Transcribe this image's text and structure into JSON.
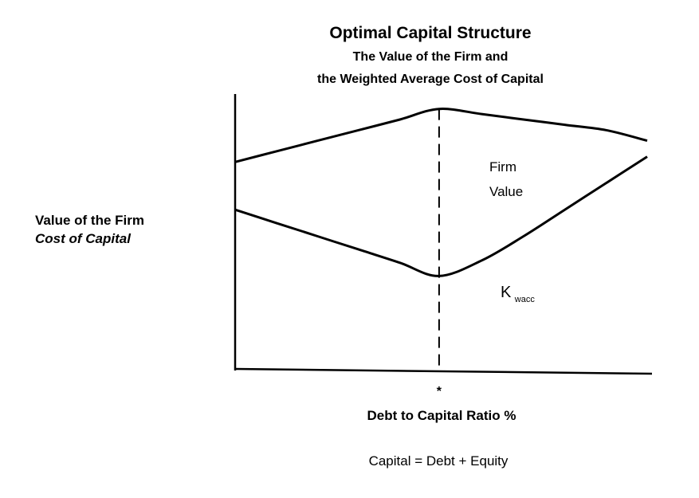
{
  "chart_data": {
    "type": "line",
    "title": "Optimal Capital Structure",
    "subtitle_line1": "The Value of the Firm and",
    "subtitle_line2": "the Weighted Average Cost of Capital",
    "xlabel": "Debt to Capital Ratio %",
    "ylabel_line1": "Value of the Firm",
    "ylabel_line2": "Cost of Capital",
    "optimal_marker": "*",
    "optimal_x": 0.495,
    "xlim": [
      0,
      1
    ],
    "ylim": [
      0,
      1
    ],
    "grid": false,
    "series": [
      {
        "name_line1": "Firm",
        "name_line2": "Value",
        "x": [
          0,
          0.1,
          0.2,
          0.3,
          0.4,
          0.495,
          0.6,
          0.7,
          0.8,
          0.9,
          1.0
        ],
        "y": [
          0.78,
          0.82,
          0.86,
          0.9,
          0.94,
          0.98,
          0.96,
          0.94,
          0.92,
          0.9,
          0.86
        ]
      },
      {
        "name_main": "K",
        "name_sub": "wacc",
        "x": [
          0,
          0.1,
          0.2,
          0.3,
          0.4,
          0.495,
          0.6,
          0.7,
          0.8,
          0.9,
          1.0
        ],
        "y": [
          0.6,
          0.55,
          0.5,
          0.45,
          0.4,
          0.35,
          0.41,
          0.5,
          0.6,
          0.7,
          0.8
        ]
      }
    ]
  },
  "footnote": "Capital = Debt + Equity"
}
